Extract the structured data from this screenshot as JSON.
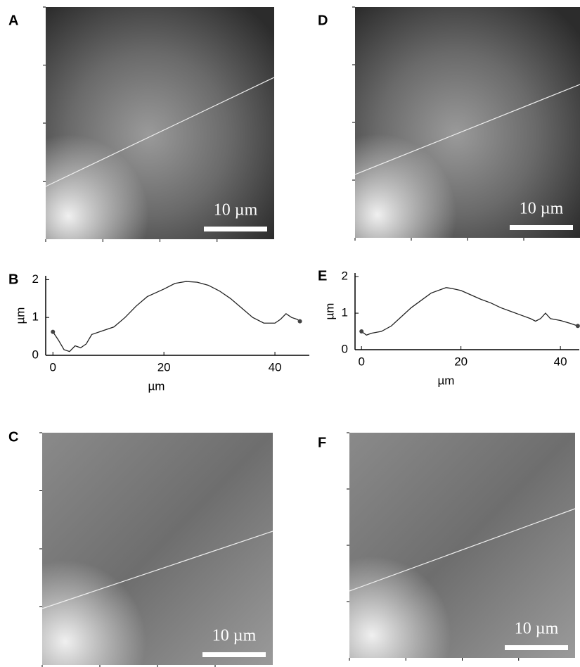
{
  "panels": [
    {
      "panel_label": "A",
      "scale_label": "10 µm"
    },
    {
      "panel_label": "D",
      "scale_label": "10 µm"
    },
    {
      "panel_label": "C",
      "scale_label": "10 µm"
    },
    {
      "panel_label": "F",
      "scale_label": "10 µm"
    }
  ],
  "chart_data": [
    {
      "type": "line",
      "panel_label": "B",
      "xlabel": "µm",
      "ylabel": "µm",
      "x": [
        0,
        1,
        2,
        3,
        4,
        5,
        6,
        7,
        9,
        11,
        13,
        15,
        17,
        20,
        22,
        24,
        26,
        28,
        30,
        32,
        34,
        36,
        38,
        40,
        41,
        42,
        43,
        44,
        44.5
      ],
      "series": [
        {
          "color": "#222222",
          "values": [
            0.62,
            0.4,
            0.15,
            0.1,
            0.25,
            0.2,
            0.3,
            0.55,
            0.65,
            0.75,
            1.0,
            1.3,
            1.55,
            1.75,
            1.9,
            1.95,
            1.93,
            1.85,
            1.7,
            1.5,
            1.25,
            1.0,
            0.85,
            0.85,
            0.95,
            1.1,
            1.0,
            0.95,
            0.9
          ]
        }
      ],
      "xlim": [
        -1.3,
        46.2
      ],
      "ylim": [
        0,
        2.1
      ],
      "xticks": [
        0,
        20,
        40
      ],
      "yticks": [
        0,
        1,
        2
      ]
    },
    {
      "type": "line",
      "panel_label": "E",
      "xlabel": "µm",
      "ylabel": "µm",
      "x": [
        0,
        1,
        2,
        4,
        6,
        8,
        10,
        12,
        14,
        16,
        17,
        18,
        20,
        22,
        24,
        26,
        28,
        30,
        32,
        34,
        35,
        36,
        37,
        38,
        40,
        42,
        43.5
      ],
      "series": [
        {
          "color": "#222222",
          "values": [
            0.5,
            0.4,
            0.45,
            0.5,
            0.65,
            0.9,
            1.15,
            1.35,
            1.55,
            1.65,
            1.7,
            1.68,
            1.62,
            1.5,
            1.38,
            1.28,
            1.15,
            1.05,
            0.95,
            0.85,
            0.78,
            0.85,
            1.0,
            0.85,
            0.8,
            0.72,
            0.65
          ]
        }
      ],
      "xlim": [
        -1.3,
        43.8
      ],
      "ylim": [
        0,
        2.1
      ],
      "xticks": [
        0,
        20,
        40
      ],
      "yticks": [
        0,
        1,
        2
      ]
    }
  ]
}
